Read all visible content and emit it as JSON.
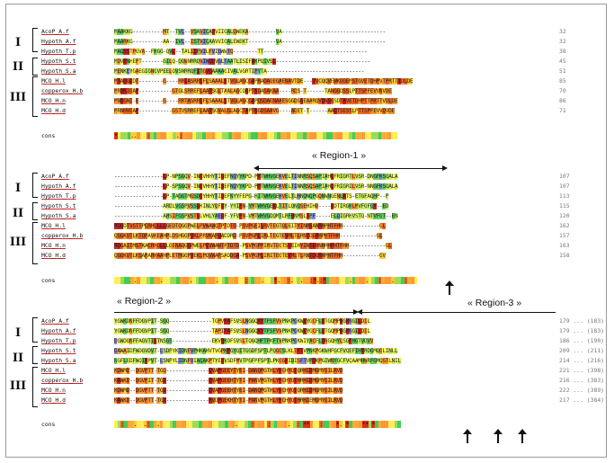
{
  "groups": [
    "I",
    "II",
    "III"
  ],
  "cons_label": "cons",
  "blocks": [
    {
      "rows": [
        {
          "name": "AcoP_A.f",
          "seq": "MAAKKG----------MT--TVL--VSAVICAGVIIGALQWEKA---------VA----------------------------------",
          "end": "32"
        },
        {
          "name": "Hypoth_A.f",
          "seq": "MAARKG----------AA--IVL--ISTVICAAVVIGALEWEKT---------VA----------------------------------",
          "end": "32"
        },
        {
          "name": "Hypoth_T.p",
          "seq": "MAQSSTPGVA--FKGG-QVL--TALIIFVILFVIGWWTQ--------TT----------------------------------",
          "end": "38"
        },
        {
          "name": "Hypoth_S.t",
          "seq": "MDVENHEPT-------GILQ-QQWNRRQVIWGGVGLTAATLISIFAKPQIVSL-------------------------------",
          "end": "45"
        },
        {
          "name": "Hypoth_S.a",
          "seq": "MENKEYGAEGIGNGVPEELQVSNRRQFITGVGAAAAGIVALVGRTIPYTA--------------------------------",
          "end": "51"
        },
        {
          "name": "MCO_H.l",
          "seq": "MTADGDDT--------G----RRIASRRGFLSAAALSTVGLAGCGAPRADAGEGAENAVTDE---TVCQQVEWKGGEMSTGVETDHPVTPRTTIDLDE",
          "end": "85"
        },
        {
          "name": "copperox_H.b",
          "seq": "MRDRIGAP-----------GTGLSRREFLAATSGLTAALAGCQAPTNQASAKAA----RDS-T------TANGGDSSLPTTSPFEVVNVDE",
          "end": "70"
        },
        {
          "name": "MCO_H.n",
          "seq": "MNDGNI-E--------G----RRTASRRGFLSAAALSTVGLAGCGAPQSDAENAAESGGDGGEAARQVDWSGSDTAVETDHPTTPRTTVDLDE",
          "end": "86"
        },
        {
          "name": "MCO_H.d",
          "seq": "MRNHVGAP-----------GSTVSRREFLAATSGVALGLAGCTAPTNGDSAAVG----ADET-T------AAQTSESSLPTTSPFEVVQVDE",
          "end": "71"
        }
      ],
      "cons": "*    ..   :        .:                                                                  "
    },
    {
      "rows": [
        {
          "name": "AcoP_A.f",
          "seq": "----------------LP-NPSGQV-INGVHHYTIDEFNQYYKPD-PMTWHVGEKVELTINNRSQSAPIAHQFRIGRTLVSR-DNGFKSQALA",
          "end": "107"
        },
        {
          "name": "Hypoth_A.f",
          "seq": "----------------LP-SPSGQV-INGVHHYTIDEFNQYYKPD-PMTWHVGEKVELTINNRSQSAPIAHQFRIGRILVSR-NNGFKSQALA",
          "end": "107"
        },
        {
          "name": "Hypoth_T.p",
          "seq": "----------------LP-TAGGTMGSDGYHHYTIDEFNYYFEPG-HITWHVGEKVELTLHNQNQPGQNWNGENLATS-ETGFAQHP--P",
          "end": "113"
        },
        {
          "name": "Hypoth_S.t",
          "seq": "----------------ARDLVGSPVSSGKINLYQFDY-YYIPN-YMTWHVGEKLTITLQNQSEHIHD----QDTIRGKLMVFGFGY--ED",
          "end": "115"
        },
        {
          "name": "Hypoth_S.a",
          "seq": "----------------AHSIFGSPVSTGLVHLYAEDF-YFVPN-VMTWHVGDQMTLRFHNMSLTPF-----ELQIGRHVSTQ-NTVFGT--EN",
          "end": "120"
        },
        {
          "name": "MCO_H.l",
          "seq": "RDQDTVSTTPCRHQLLLGEDTQGGPWELPVWAWQTPTDTD-PSVPGEILRVTEGTQLEITYINHSANRHPHTFHH------------GL",
          "end": "162"
        },
        {
          "name": "copperox_H.b",
          "seq": "QGGKVTLKTQPAVHEAHPLDSHGGPVKLPRVKAFQADDRD-PSVPGPLIRLTEGTEVMLTLRNTDGRHPHTFHH------------GL",
          "end": "157"
        },
        {
          "name": "MCO_H.n",
          "seq": "RDGAITMSTKACRHQLLLGENAQGGPWELPEVWAWTPTDTD-PSVPGPPIRVTEGTSVEIHYINTEHNHRHPHTFHH------------GL",
          "end": "163"
        },
        {
          "name": "MCO_H.d",
          "seq": "QGGKVTLKSAPARHAAHPLETMGGPVEKLPQVWAFSADDGA-PSVPGPLIRITEGTEVMLTLRNTDGRHPHTFHH------------GV",
          "end": "158"
        }
      ],
      "cons": "      .       .        .       .        :    .   *.  :.  .  :*.:*       .    .   :   .   :   "
    },
    {
      "rows": [
        {
          "name": "AcoP_A.f",
          "seq": "YGWKDNFFDGVPIT-SGQ--------------TGPVPAFSVSLNGGQKYTFSFVVPNKPGKWEYGCFLQTGQMPNGMNGILDIL",
          "end": "179 ... (183)"
        },
        {
          "name": "Hypoth_A.f",
          "seq": "YGWKDNFFDGVPIT-SGQ--------------TAPIPAFSVSLNGGQKYTFSFVVPNKPGKWEYGCFLQTGQMPNGMNGILDIL",
          "end": "179 ... (183)"
        },
        {
          "name": "Hypoth_T.p",
          "seq": "DGWDQNFFAGVTILTNSGS-------------EKVQKDFSVSLTQGQHFTFKFTVPNKPGKWIYACFLQNGQHYLSGMHGTVDVV",
          "end": "186 ... (190)"
        },
        {
          "name": "Hypoth_S.t",
          "seq": "DAWAIDFWDGVDVT-LSDPYKIDNFVPHKAHVTVGPKPGYQITGGDFSPTLPQGGSLKLTFTVPNKPGKWHFGCFVQEFIHYRDGMQGLINLL",
          "end": "209 ... (211)"
        },
        {
          "name": "Hypoth_S.a",
          "seq": "NGFLEDFWQIMPVT-LSNPYLIDNFVIAQAKPTYEQVSDFMVTPGFPFSPTLPKGGHIDISFTVPDKPGIWNYGCFVQAAMHWRFGMQGTLNIL",
          "end": "214 ... (216)"
        },
        {
          "name": "MCO_H.l",
          "seq": "KDWMD--DGVPTT-TGQ--------------QVAPGEEYTYEI-DANQPGTHLYHCHYQTQRHIDMGMYGILRVD",
          "end": "221 ... (398)"
        },
        {
          "name": "copperox_H.b",
          "seq": "KAWKD--DGVPIT-TGI--------------QVAPGEEHTYTI-PANVPGTHLYHCHYQTHRHIDMGMYGILRVD",
          "end": "216 ... (383)"
        },
        {
          "name": "MCO_H.n",
          "seq": "KDWMD--DGVPTT-TGI--------------QVAPGEEHTYEI-DANQPGTHLYHCHYQTQRHIDMGMYGILRVD",
          "end": "222 ... (389)"
        },
        {
          "name": "MCO_H.d",
          "seq": "KAWKD--DGVPTT-TGI--------------RVDPGEKHTYTI-PANVPGTHLYHCHYQTHRHIEMGMYGILRVD",
          "end": "217 ... (384)"
        }
      ],
      "cons": "  :   .  .:  .                       .    :    :     .  : **   :    *. *    ** *        "
    }
  ],
  "regions": {
    "region1": "« Region-1 »",
    "region2": "« Region-2 »",
    "region3": "« Region-3 »"
  }
}
